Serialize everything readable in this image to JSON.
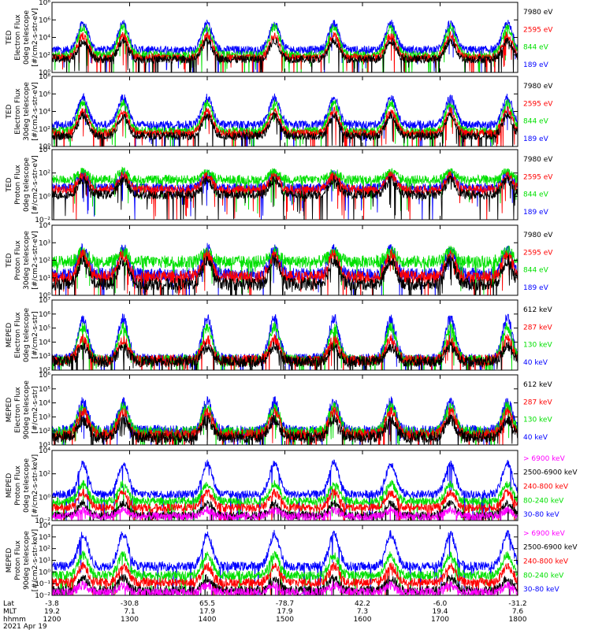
{
  "chart_data": {
    "type": "line",
    "panels": [
      {
        "ylabel": [
          "TED",
          "Electron Flux",
          "0deg telescope",
          "[#/cm2-s-str-eV]"
        ],
        "yticks": [
          "10⁰",
          "10²",
          "10⁴",
          "10⁶",
          "10⁸"
        ],
        "ylim_log10": [
          0,
          8
        ],
        "series": [
          {
            "name": "7980 eV",
            "color": "#000000",
            "base_log10": 1.5,
            "peak_log10": 3.6
          },
          {
            "name": "2595 eV",
            "color": "#ff0000",
            "base_log10": 1.7,
            "peak_log10": 4.2
          },
          {
            "name": "844 eV",
            "color": "#00e000",
            "base_log10": 2.0,
            "peak_log10": 5.2
          },
          {
            "name": "189 eV",
            "color": "#0000ff",
            "base_log10": 2.6,
            "peak_log10": 5.6
          }
        ]
      },
      {
        "ylabel": [
          "TED",
          "Electron Flux",
          "30deg telescope",
          "[#/cm2-s-str-eV]"
        ],
        "yticks": [
          "10⁰",
          "10²",
          "10⁴",
          "10⁶",
          "10⁸"
        ],
        "ylim_log10": [
          0,
          8
        ],
        "series": [
          {
            "name": "7980 eV",
            "color": "#000000",
            "base_log10": 1.2,
            "peak_log10": 3.5
          },
          {
            "name": "2595 eV",
            "color": "#ff0000",
            "base_log10": 1.5,
            "peak_log10": 4.1
          },
          {
            "name": "844 eV",
            "color": "#00e000",
            "base_log10": 1.8,
            "peak_log10": 5.0
          },
          {
            "name": "189 eV",
            "color": "#0000ff",
            "base_log10": 2.5,
            "peak_log10": 5.6
          }
        ]
      },
      {
        "ylabel": [
          "TED",
          "Proton Flux",
          "0deg telescope",
          "[#/cm2-s-str-eV]"
        ],
        "yticks": [
          "10⁻²",
          "10⁰",
          "10²",
          "10⁴"
        ],
        "ylim_log10": [
          -2,
          5
        ],
        "series": [
          {
            "name": "7980 eV",
            "color": "#000000",
            "base_log10": 0.5,
            "peak_log10": 2.0
          },
          {
            "name": "2595 eV",
            "color": "#ff0000",
            "base_log10": 1.0,
            "peak_log10": 2.4
          },
          {
            "name": "844 eV",
            "color": "#00e000",
            "base_log10": 2.0,
            "peak_log10": 2.8
          },
          {
            "name": "189 eV",
            "color": "#0000ff",
            "base_log10": 1.2,
            "peak_log10": 2.6
          }
        ]
      },
      {
        "ylabel": [
          "TED",
          "Proton Flux",
          "30deg telescope",
          "[#/cm2-s-str-eV]"
        ],
        "yticks": [
          "10⁰",
          "10¹",
          "10²",
          "10³",
          "10⁴"
        ],
        "ylim_log10": [
          -0.5,
          4.5
        ],
        "series": [
          {
            "name": "7980 eV",
            "color": "#000000",
            "base_log10": 0.3,
            "peak_log10": 2.0
          },
          {
            "name": "2595 eV",
            "color": "#ff0000",
            "base_log10": 0.8,
            "peak_log10": 2.4
          },
          {
            "name": "844 eV",
            "color": "#00e000",
            "base_log10": 1.9,
            "peak_log10": 2.6
          },
          {
            "name": "189 eV",
            "color": "#0000ff",
            "base_log10": 1.0,
            "peak_log10": 2.8
          }
        ]
      },
      {
        "ylabel": [
          "MEPED",
          "Electron Flux",
          "0deg telescope",
          "[#/cm2-s-str]"
        ],
        "yticks": [
          "10²",
          "10³",
          "10⁴",
          "10⁵",
          "10⁶",
          "10⁷"
        ],
        "ylim_log10": [
          1.3,
          7
        ],
        "series": [
          {
            "name": "612 keV",
            "color": "#000000",
            "base_log10": 2.0,
            "peak_log10": 3.2
          },
          {
            "name": "287 keV",
            "color": "#ff0000",
            "base_log10": 2.1,
            "peak_log10": 3.8
          },
          {
            "name": "130 keV",
            "color": "#00e000",
            "base_log10": 2.1,
            "peak_log10": 4.8
          },
          {
            "name": "40 keV",
            "color": "#0000ff",
            "base_log10": 2.2,
            "peak_log10": 5.5
          }
        ]
      },
      {
        "ylabel": [
          "MEPED",
          "Electron Flux",
          "90deg telescope",
          "[#/cm2-s-str]"
        ],
        "yticks": [
          "10¹",
          "10²",
          "10³",
          "10⁴",
          "10⁵",
          "10⁶"
        ],
        "ylim_log10": [
          1,
          6.5
        ],
        "series": [
          {
            "name": "612 keV",
            "color": "#000000",
            "base_log10": 1.6,
            "peak_log10": 3.0
          },
          {
            "name": "287 keV",
            "color": "#ff0000",
            "base_log10": 1.8,
            "peak_log10": 3.6
          },
          {
            "name": "130 keV",
            "color": "#00e000",
            "base_log10": 2.0,
            "peak_log10": 4.0
          },
          {
            "name": "40 keV",
            "color": "#0000ff",
            "base_log10": 2.1,
            "peak_log10": 4.4
          }
        ]
      },
      {
        "ylabel": [
          "MEPED",
          "Proton Flux",
          "0deg telescope",
          "[#/cm2-s-str-keV]"
        ],
        "yticks": [
          "10⁻²",
          "10⁰",
          "10²",
          "10⁴"
        ],
        "ylim_log10": [
          -3,
          5
        ],
        "series": [
          {
            "name": "> 6900 keV",
            "color": "#ff00ff",
            "base_log10": -2.5,
            "peak_log10": -1.8
          },
          {
            "name": "2500-6900 keV",
            "color": "#000000",
            "base_log10": -2.4,
            "peak_log10": -1.0
          },
          {
            "name": "240-800 keV",
            "color": "#ff0000",
            "base_log10": -1.5,
            "peak_log10": 0.2
          },
          {
            "name": "80-240 keV",
            "color": "#00e000",
            "base_log10": -0.8,
            "peak_log10": 1.2
          },
          {
            "name": "30-80 keV",
            "color": "#0000ff",
            "base_log10": 0.0,
            "peak_log10": 3.5
          }
        ]
      },
      {
        "ylabel": [
          "MEPED",
          "Proton Flux",
          "90deg telescope",
          "[#/cm2-s-str-keV]"
        ],
        "yticks": [
          "10⁻²",
          "10⁻¹",
          "10⁰",
          "10¹",
          "10²",
          "10³",
          "10⁴"
        ],
        "ylim_log10": [
          -2.5,
          4.5
        ],
        "series": [
          {
            "name": "> 6900 keV",
            "color": "#ff00ff",
            "base_log10": -2.2,
            "peak_log10": -1.5
          },
          {
            "name": "2500-6900 keV",
            "color": "#000000",
            "base_log10": -2.0,
            "peak_log10": -0.8
          },
          {
            "name": "240-800 keV",
            "color": "#ff0000",
            "base_log10": -1.2,
            "peak_log10": 0.4
          },
          {
            "name": "80-240 keV",
            "color": "#00e000",
            "base_log10": -0.5,
            "peak_log10": 1.5
          },
          {
            "name": "30-80 keV",
            "color": "#0000ff",
            "base_log10": 0.4,
            "peak_log10": 3.6
          }
        ]
      }
    ],
    "x_axis": {
      "hhmm_range": [
        1200,
        1800
      ],
      "row_labels": [
        "Lat",
        "MLT",
        "hhmm"
      ],
      "ticks": [
        {
          "hhmm": 1200,
          "lat": "-3.8",
          "mlt": "19.2",
          "label": "1200"
        },
        {
          "hhmm": 1300,
          "lat": "-30.8",
          "mlt": "7.1",
          "label": "1300"
        },
        {
          "hhmm": 1400,
          "lat": "65.5",
          "mlt": "17.9",
          "label": "1400"
        },
        {
          "hhmm": 1500,
          "lat": "-78.7",
          "mlt": "17.9",
          "label": "1500"
        },
        {
          "hhmm": 1600,
          "lat": "42.2",
          "mlt": "7.3",
          "label": "1600"
        },
        {
          "hhmm": 1700,
          "lat": "-6.0",
          "mlt": "19.4",
          "label": "1700"
        },
        {
          "hhmm": 1800,
          "lat": "-31.2",
          "mlt": "7.6",
          "label": "1800"
        }
      ]
    },
    "date": "2021 Apr 19"
  }
}
